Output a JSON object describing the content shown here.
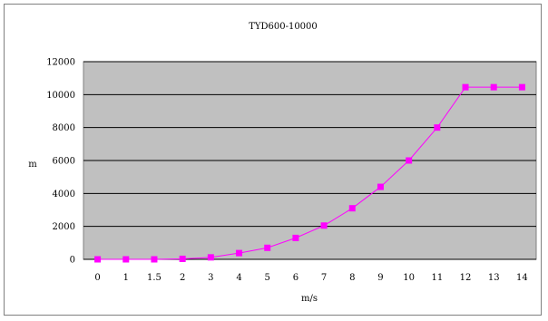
{
  "chart_data": {
    "type": "line",
    "title": "TYD600-10000",
    "xlabel": "m/s",
    "ylabel": "m",
    "categories": [
      "0",
      "1",
      "1.5",
      "2",
      "3",
      "4",
      "5",
      "6",
      "7",
      "8",
      "9",
      "10",
      "11",
      "12",
      "13",
      "14"
    ],
    "series": [
      {
        "values": [
          0,
          0,
          0,
          30,
          120,
          380,
          700,
          1300,
          2050,
          3100,
          4400,
          6000,
          8000,
          10450,
          10450,
          10450
        ]
      }
    ],
    "yticks": [
      "0",
      "2000",
      "4000",
      "6000",
      "8000",
      "10000",
      "12000"
    ],
    "ylim": [
      0,
      12000
    ],
    "grid": true,
    "legend": "none",
    "colors": {
      "series": "#ff00ff",
      "plot_background": "#c0c0c0",
      "gridline": "#000000"
    }
  }
}
